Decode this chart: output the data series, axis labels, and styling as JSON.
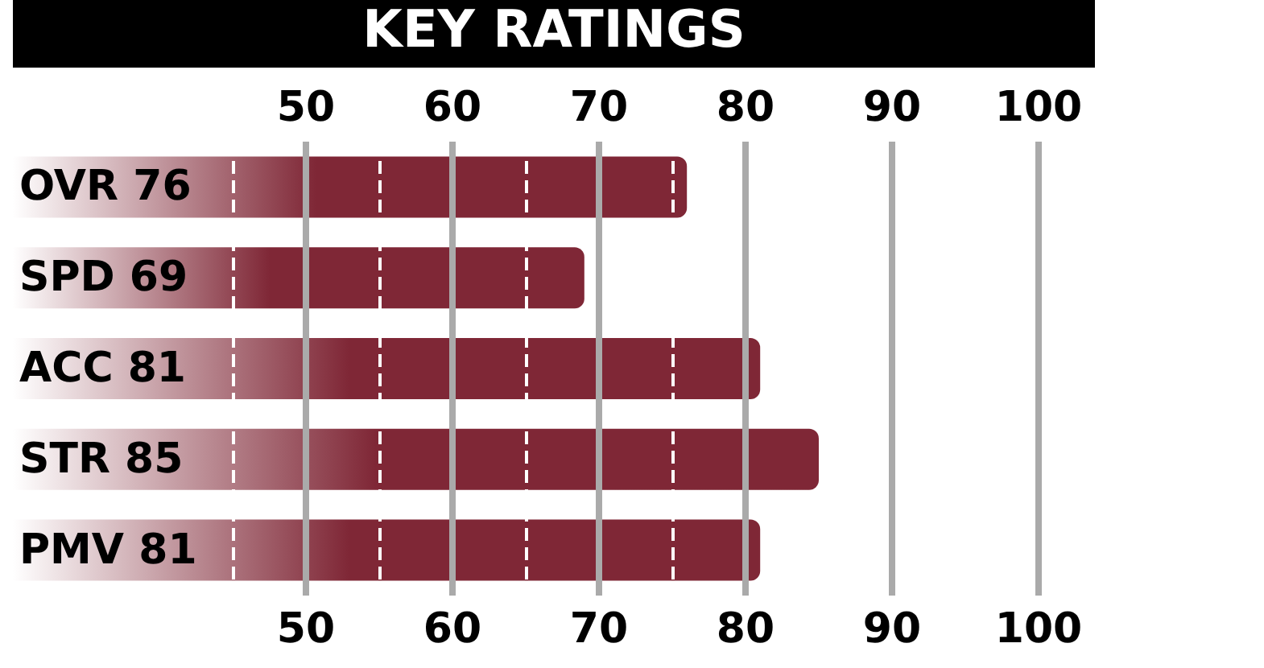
{
  "chart_data": {
    "type": "bar",
    "orientation": "horizontal",
    "title": "KEY RATINGS",
    "categories": [
      "OVR 76",
      "SPD 69",
      "ACC 81",
      "STR 85",
      "PMV 81"
    ],
    "values": [
      76,
      69,
      81,
      85,
      81
    ],
    "color": "#7f2736",
    "xlim": [
      30,
      100
    ],
    "xticks": [
      {
        "value": 45,
        "label": null
      },
      50,
      {
        "value": 55,
        "label": null
      },
      60,
      {
        "value": 65,
        "label": null
      },
      70,
      {
        "value": 75,
        "label": null
      },
      80,
      90,
      100
    ],
    "x2lim": [
      30,
      100
    ],
    "x2ticks": [
      50,
      60,
      70,
      80,
      90,
      100
    ],
    "grid": "x"
  }
}
